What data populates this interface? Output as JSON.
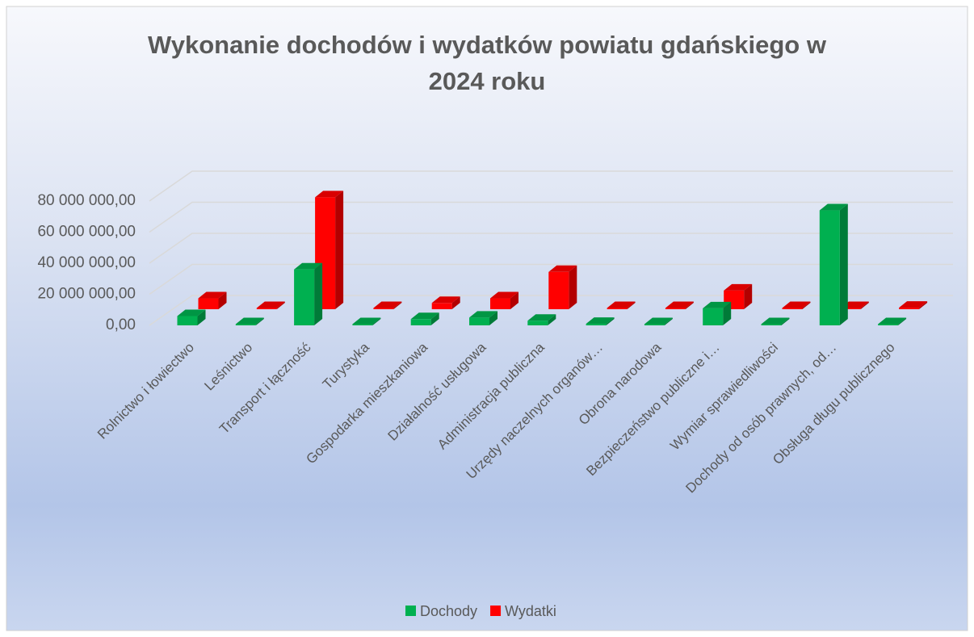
{
  "chart_data": {
    "type": "bar3d",
    "title": [
      "Wykonanie dochodów i wydatków powiatu gdańskiego w",
      "2024 roku"
    ],
    "categories": [
      "Rolnictwo i łowiectwo",
      "Leśnictwo",
      "Transport i łączność",
      "Turystyka",
      "Gospodarka mieszkaniowa",
      "Działalność usługowa",
      "Administracja publiczna",
      "Urzędy naczelnych organów…",
      "Obrona narodowa",
      "Bezpieczeństwo publiczne i…",
      "Wymiar sprawiedliwości",
      "Dochody od osób prawnych, od…",
      "Obsługa długu publicznego"
    ],
    "series": [
      {
        "name": "Dochody",
        "color": "#00b050",
        "values": [
          6000000,
          0,
          36000000,
          0,
          4000000,
          5000000,
          3000000,
          1000000,
          500000,
          11000000,
          500000,
          74000000,
          0
        ]
      },
      {
        "name": "Wydatki",
        "color": "#ff0000",
        "values": [
          7000000,
          300000,
          72000000,
          300000,
          4000000,
          7000000,
          24000000,
          500000,
          500000,
          12000000,
          500000,
          0,
          1000000
        ]
      }
    ],
    "ylim": [
      0,
      80000000
    ],
    "yticks": [
      {
        "value": 0,
        "label": "0,00"
      },
      {
        "value": 20000000,
        "label": "20 000 000,00"
      },
      {
        "value": 40000000,
        "label": "40 000 000,00"
      },
      {
        "value": 60000000,
        "label": "60 000 000,00"
      },
      {
        "value": 80000000,
        "label": "80 000 000,00"
      }
    ],
    "grid": true,
    "legend": "bottom"
  }
}
